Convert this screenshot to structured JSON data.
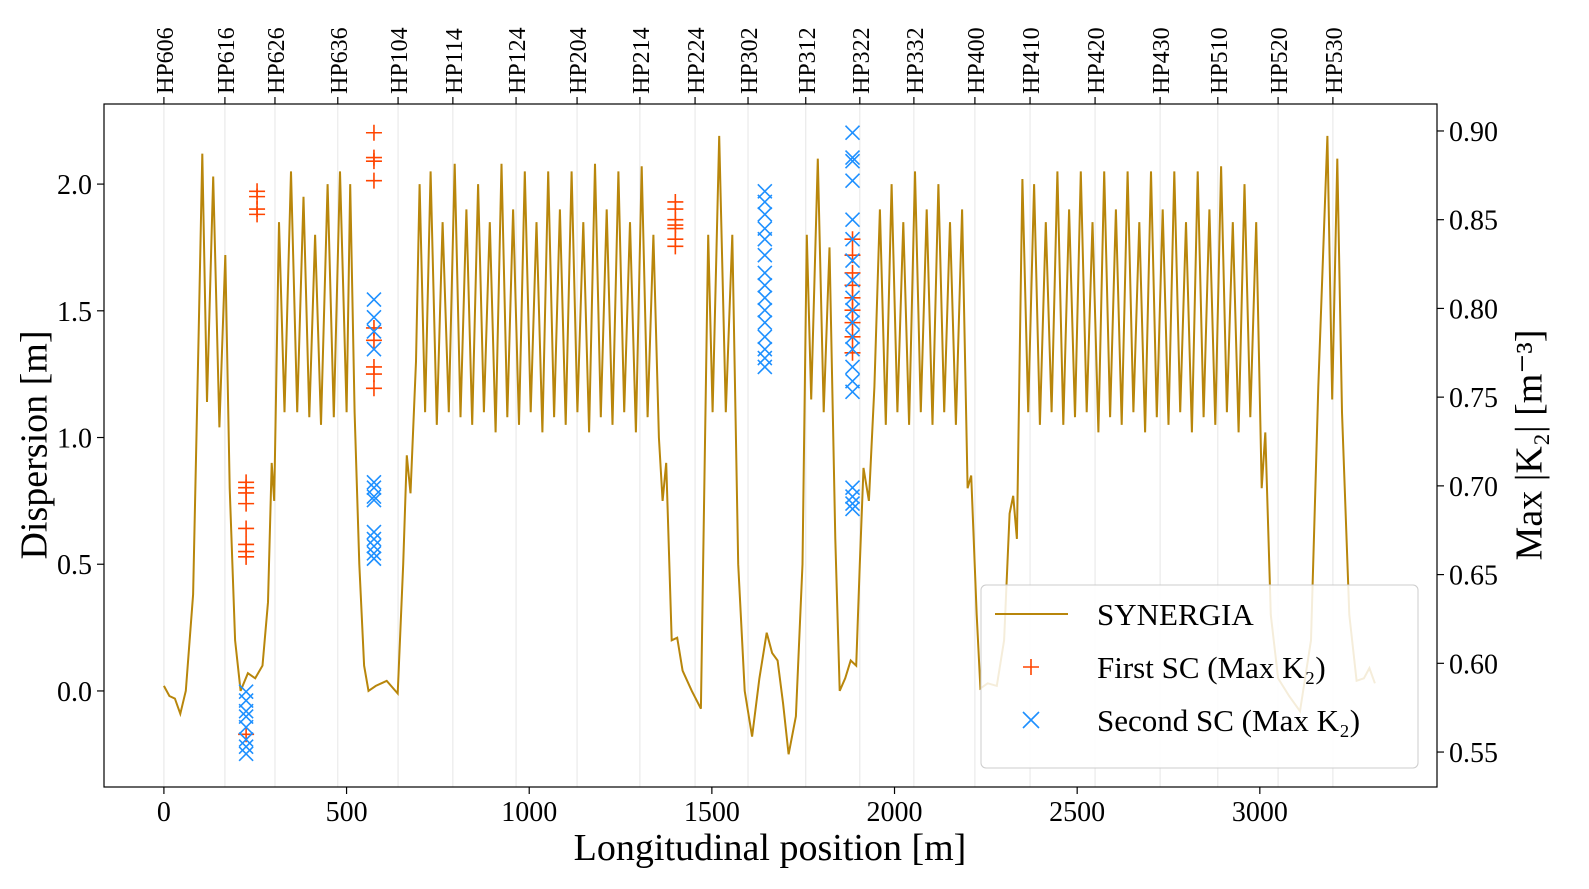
{
  "chart_data": {
    "type": "line",
    "xlabel": "Longitudinal position [m]",
    "ylabel": "Dispersion [m]",
    "y2label": "Max |K₂| [m⁻³]",
    "xlim": [
      -164,
      3485
    ],
    "ylim": [
      -0.379,
      2.316
    ],
    "y2lim": [
      0.5303,
      0.9152
    ],
    "xticks": [
      0,
      500,
      1000,
      1500,
      2000,
      2500,
      3000
    ],
    "yticks": [
      {
        "value": 0,
        "label": "0.0"
      },
      0.5,
      {
        "value": 1,
        "label": "1.0"
      },
      1.5,
      {
        "value": 2,
        "label": "2.0"
      }
    ],
    "y2ticks": [
      0.55,
      {
        "value": 0.6,
        "label": "0.60"
      },
      0.65,
      {
        "value": 0.7,
        "label": "0.70"
      },
      0.75,
      {
        "value": 0.8,
        "label": "0.80"
      },
      0.85,
      {
        "value": 0.9,
        "label": "0.90"
      }
    ],
    "x2ticks": [
      {
        "value": 0,
        "label": "HP606"
      },
      {
        "value": 167,
        "label": "HP616"
      },
      {
        "value": 304,
        "label": "HP626"
      },
      {
        "value": 476,
        "label": "HP636"
      },
      {
        "value": 641,
        "label": "HP104"
      },
      {
        "value": 791,
        "label": "HP114"
      },
      {
        "value": 964,
        "label": "HP124"
      },
      {
        "value": 1131,
        "label": "HP204"
      },
      {
        "value": 1303,
        "label": "HP214"
      },
      {
        "value": 1454,
        "label": "HP224"
      },
      {
        "value": 1599,
        "label": "HP302"
      },
      {
        "value": 1757,
        "label": "HP312"
      },
      {
        "value": 1905,
        "label": "HP322"
      },
      {
        "value": 2053,
        "label": "HP332"
      },
      {
        "value": 2220,
        "label": "HP400"
      },
      {
        "value": 2371,
        "label": "HP410"
      },
      {
        "value": 2549,
        "label": "HP420"
      },
      {
        "value": 2727,
        "label": "HP430"
      },
      {
        "value": 2885,
        "label": "HP510"
      },
      {
        "value": 3050,
        "label": "HP520"
      },
      {
        "value": 3200,
        "label": "HP530"
      }
    ],
    "grid": true,
    "legend": "lower right",
    "series": [
      {
        "name": "SYNERGIA",
        "type": "line",
        "color": "#b8860b",
        "x": [
          0,
          15,
          30,
          45,
          60,
          80,
          95,
          105,
          118,
          135,
          152,
          168,
          180,
          195,
          210,
          230,
          250,
          270,
          285,
          295,
          302,
          315,
          330,
          348,
          365,
          382,
          398,
          414,
          430,
          448,
          465,
          482,
          500,
          510,
          522,
          535,
          548,
          560,
          580,
          610,
          640,
          655,
          665,
          675,
          690,
          700,
          715,
          730,
          747,
          763,
          780,
          796,
          812,
          828,
          844,
          860,
          876,
          892,
          908,
          924,
          940,
          956,
          972,
          988,
          1004,
          1020,
          1036,
          1052,
          1068,
          1084,
          1100,
          1116,
          1132,
          1148,
          1164,
          1180,
          1196,
          1212,
          1228,
          1244,
          1260,
          1276,
          1292,
          1308,
          1324,
          1340,
          1355,
          1365,
          1375,
          1390,
          1405,
          1420,
          1445,
          1470,
          1490,
          1502,
          1520,
          1538,
          1556,
          1572,
          1590,
          1610,
          1630,
          1650,
          1665,
          1680,
          1695,
          1710,
          1730,
          1748,
          1760,
          1772,
          1790,
          1806,
          1822,
          1838,
          1850,
          1865,
          1880,
          1895,
          1905,
          1915,
          1930,
          1945,
          1960,
          1976,
          1992,
          2008,
          2024,
          2040,
          2056,
          2072,
          2088,
          2104,
          2120,
          2136,
          2152,
          2168,
          2185,
          2200,
          2210,
          2225,
          2235,
          2255,
          2280,
          2300,
          2315,
          2325,
          2335,
          2350,
          2366,
          2382,
          2398,
          2414,
          2430,
          2446,
          2462,
          2478,
          2494,
          2510,
          2526,
          2542,
          2558,
          2574,
          2590,
          2606,
          2622,
          2638,
          2654,
          2670,
          2686,
          2702,
          2718,
          2734,
          2750,
          2766,
          2782,
          2798,
          2814,
          2830,
          2846,
          2862,
          2878,
          2894,
          2910,
          2926,
          2942,
          2958,
          2974,
          2990,
          3005,
          3015,
          3030,
          3050,
          3080,
          3110,
          3140,
          3160,
          3175,
          3185,
          3198,
          3212,
          3225,
          3245,
          3265,
          3285,
          3300,
          3315
        ],
        "values": [
          0.02,
          -0.02,
          -0.03,
          -0.09,
          0.0,
          0.38,
          1.4,
          2.12,
          1.14,
          2.03,
          1.04,
          1.72,
          0.8,
          0.2,
          0.0,
          0.07,
          0.05,
          0.1,
          0.35,
          0.9,
          0.75,
          1.85,
          1.1,
          2.05,
          1.1,
          1.95,
          1.08,
          1.8,
          1.05,
          2.0,
          1.08,
          2.05,
          1.1,
          2.0,
          1.1,
          0.5,
          0.1,
          0.0,
          0.02,
          0.04,
          -0.01,
          0.5,
          0.93,
          0.78,
          1.3,
          2.0,
          1.1,
          2.05,
          1.05,
          1.85,
          1.1,
          2.08,
          1.08,
          1.9,
          1.05,
          2.0,
          1.1,
          1.85,
          1.02,
          2.08,
          1.08,
          1.9,
          1.05,
          2.05,
          1.1,
          1.85,
          1.02,
          2.05,
          1.08,
          1.9,
          1.05,
          2.05,
          1.1,
          1.85,
          1.02,
          2.08,
          1.08,
          1.9,
          1.05,
          2.05,
          1.1,
          1.85,
          1.02,
          2.07,
          1.08,
          1.8,
          1.0,
          0.75,
          0.9,
          0.2,
          0.21,
          0.08,
          0.0,
          -0.07,
          1.8,
          1.1,
          2.19,
          1.1,
          1.8,
          0.5,
          0.0,
          -0.18,
          0.05,
          0.23,
          0.15,
          0.12,
          -0.05,
          -0.25,
          -0.1,
          0.5,
          1.8,
          1.15,
          2.1,
          1.1,
          1.75,
          0.6,
          0.0,
          0.05,
          0.12,
          0.1,
          0.5,
          0.88,
          0.75,
          1.2,
          1.9,
          1.05,
          2.0,
          1.1,
          1.85,
          1.05,
          2.05,
          1.1,
          1.9,
          1.05,
          2.0,
          1.1,
          1.85,
          1.05,
          1.9,
          0.8,
          0.85,
          0.3,
          0.01,
          0.03,
          0.02,
          0.2,
          0.7,
          0.77,
          0.6,
          2.02,
          1.1,
          2.0,
          1.05,
          1.85,
          1.1,
          2.05,
          1.05,
          1.9,
          1.08,
          2.05,
          1.1,
          1.85,
          1.02,
          2.05,
          1.08,
          1.9,
          1.05,
          2.05,
          1.1,
          1.85,
          1.02,
          2.05,
          1.08,
          1.9,
          1.05,
          2.05,
          1.1,
          1.85,
          1.02,
          2.05,
          1.08,
          1.9,
          1.05,
          2.07,
          1.1,
          1.85,
          1.02,
          2.0,
          1.08,
          1.85,
          0.8,
          1.02,
          0.3,
          0.05,
          -0.02,
          -0.08,
          0.2,
          1.2,
          1.8,
          2.19,
          1.15,
          2.1,
          1.1,
          0.3,
          0.04,
          0.05,
          0.09,
          0.03
        ]
      },
      {
        "name": "First SC (Max K₂)",
        "type": "scatter",
        "marker": "plus",
        "axis": "y2",
        "color": "#ff4500",
        "x": [
          225,
          225,
          225,
          225,
          225,
          225,
          225,
          225,
          225,
          255,
          255,
          255,
          255,
          575,
          575,
          575,
          575,
          575,
          575,
          575,
          575,
          575,
          1400,
          1400,
          1400,
          1400,
          1400,
          1400,
          1400,
          1885,
          1885,
          1885,
          1885,
          1885,
          1885,
          1885,
          1885,
          1885
        ],
        "values": [
          0.702,
          0.699,
          0.696,
          0.69,
          0.676,
          0.667,
          0.663,
          0.66,
          0.56,
          0.866,
          0.863,
          0.856,
          0.853,
          0.899,
          0.885,
          0.883,
          0.872,
          0.789,
          0.782,
          0.767,
          0.763,
          0.755,
          0.86,
          0.856,
          0.85,
          0.847,
          0.845,
          0.839,
          0.835,
          0.839,
          0.83,
          0.82,
          0.813,
          0.806,
          0.799,
          0.792,
          0.784,
          0.775
        ]
      },
      {
        "name": "Second SC (Max K₂)",
        "type": "scatter",
        "marker": "cross",
        "axis": "y2",
        "color": "#1e90ff",
        "x": [
          225,
          225,
          225,
          225,
          225,
          225,
          225,
          225,
          575,
          575,
          575,
          575,
          575,
          575,
          575,
          575,
          575,
          575,
          575,
          575,
          575,
          1645,
          1645,
          1645,
          1645,
          1645,
          1645,
          1645,
          1645,
          1645,
          1645,
          1645,
          1645,
          1645,
          1645,
          1645,
          1885,
          1885,
          1885,
          1885,
          1885,
          1885,
          1885,
          1885,
          1885,
          1885,
          1885,
          1885,
          1885,
          1885,
          1885,
          1885,
          1885,
          1885,
          1885,
          1885
        ],
        "values": [
          0.584,
          0.579,
          0.573,
          0.57,
          0.564,
          0.557,
          0.553,
          0.549,
          0.805,
          0.795,
          0.787,
          0.777,
          0.702,
          0.699,
          0.694,
          0.692,
          0.674,
          0.67,
          0.666,
          0.662,
          0.659,
          0.866,
          0.86,
          0.853,
          0.845,
          0.839,
          0.83,
          0.82,
          0.813,
          0.806,
          0.799,
          0.792,
          0.784,
          0.777,
          0.772,
          0.767,
          0.899,
          0.885,
          0.883,
          0.872,
          0.85,
          0.839,
          0.827,
          0.816,
          0.806,
          0.799,
          0.792,
          0.784,
          0.777,
          0.767,
          0.759,
          0.753,
          0.699,
          0.694,
          0.69,
          0.687
        ]
      }
    ]
  }
}
